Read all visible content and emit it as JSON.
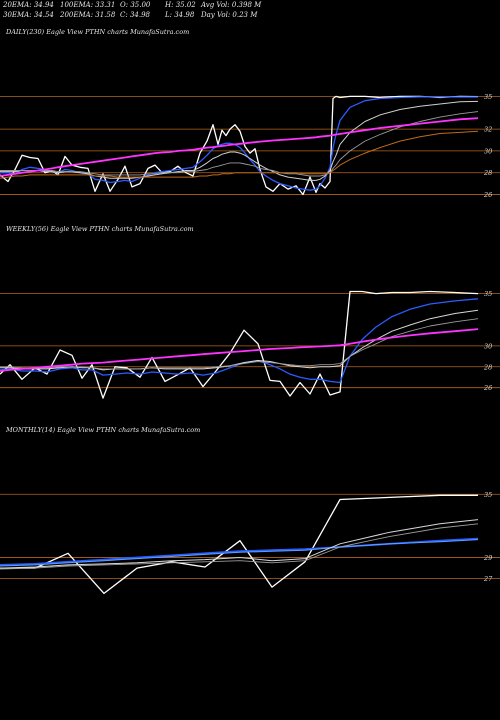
{
  "header": {
    "row1": [
      "20EMA: 34.94",
      "100EMA: 33.31",
      "O: 35.00",
      "H: 35.02",
      "Avg Vol: 0.398 M"
    ],
    "row2": [
      "30EMA: 34.54",
      "200EMA: 31.58",
      "C: 34.98",
      "L: 34.98",
      "Day Vol: 0.23 M"
    ]
  },
  "colors": {
    "background": "#000000",
    "grid": "#b5651d",
    "price": "#ffffff",
    "ema_blue": "#2a5cff",
    "ema_magenta": "#ff33ff",
    "ema_orange": "#c06a1a",
    "ema_light_blue": "#5aa0ff"
  },
  "chart_data": [
    {
      "type": "line",
      "title": "DAILY(230) Eagle  View  PTHN  charts MunafaSutra.com",
      "ylim": [
        25.5,
        36.5
      ],
      "y_ticks": [
        35,
        32,
        30,
        28,
        26
      ],
      "x": [
        0,
        8,
        15,
        22,
        30,
        38,
        45,
        52,
        58,
        65,
        72,
        80,
        88,
        95,
        103,
        110,
        118,
        125,
        132,
        140,
        148,
        155,
        162,
        170,
        178,
        186,
        193,
        200,
        207,
        213,
        218,
        222,
        226,
        230,
        235,
        240,
        245,
        250,
        255,
        260,
        266,
        273,
        280,
        288,
        296,
        303,
        310,
        316,
        320,
        325,
        330,
        333,
        336,
        340,
        350,
        365,
        380,
        400,
        420,
        440,
        460,
        478
      ],
      "series": [
        {
          "values": [
            27.8,
            27.2,
            28.3,
            29.6,
            29.4,
            29.3,
            28.0,
            28.2,
            27.8,
            29.5,
            28.7,
            28.5,
            28.4,
            26.3,
            27.9,
            26.3,
            27.4,
            28.6,
            26.7,
            27.0,
            28.4,
            28.7,
            28.0,
            28.1,
            28.6,
            28.0,
            27.7,
            29.8,
            30.9,
            32.4,
            30.6,
            31.9,
            31.4,
            32.0,
            32.4,
            31.8,
            30.4,
            29.8,
            30.2,
            28.3,
            26.7,
            26.3,
            27.0,
            26.5,
            26.8,
            26.0,
            27.6,
            26.2,
            27.0,
            26.6,
            27.2,
            34.8,
            35.0,
            34.9,
            35.0,
            35.0,
            34.9,
            35.0,
            35.0,
            34.9,
            35.0,
            34.98
          ],
          "color": "#ffffff",
          "width": 1.3
        },
        {
          "values": [
            28.0,
            28.0,
            27.9,
            28.3,
            28.5,
            28.4,
            28.3,
            28.1,
            28.0,
            28.3,
            28.2,
            28.0,
            27.9,
            27.4,
            27.3,
            27.1,
            27.2,
            27.3,
            27.2,
            27.5,
            27.8,
            28.0,
            28.1,
            28.2,
            28.3,
            28.4,
            28.5,
            29.0,
            29.6,
            30.2,
            30.5,
            30.6,
            30.7,
            30.7,
            30.6,
            30.3,
            29.8,
            29.2,
            28.7,
            28.1,
            27.7,
            27.3,
            27.0,
            26.8,
            26.6,
            26.5,
            26.4,
            26.5,
            26.8,
            27.5,
            28.5,
            30.3,
            31.5,
            32.8,
            34.0,
            34.6,
            34.8,
            34.9,
            34.95,
            34.95,
            34.94,
            34.94
          ],
          "color": "#2a5cff",
          "width": 1.3
        },
        {
          "values": [
            28.1,
            28.1,
            28.1,
            28.2,
            28.2,
            28.2,
            28.1,
            28.1,
            28.0,
            28.1,
            28.1,
            28.0,
            27.9,
            27.7,
            27.6,
            27.5,
            27.5,
            27.5,
            27.5,
            27.6,
            27.7,
            27.8,
            27.9,
            28.0,
            28.1,
            28.2,
            28.2,
            28.5,
            28.9,
            29.3,
            29.5,
            29.7,
            29.8,
            29.9,
            29.9,
            29.8,
            29.6,
            29.3,
            29.0,
            28.7,
            28.4,
            28.1,
            27.8,
            27.6,
            27.5,
            27.4,
            27.3,
            27.3,
            27.4,
            27.7,
            28.2,
            29.0,
            29.6,
            30.6,
            31.7,
            32.7,
            33.3,
            33.8,
            34.1,
            34.3,
            34.5,
            34.54
          ],
          "color": "#cfcfcf",
          "width": 1.0
        },
        {
          "values": [
            28.2,
            28.2,
            28.2,
            28.2,
            28.2,
            28.2,
            28.2,
            28.2,
            28.1,
            28.1,
            28.1,
            28.1,
            28.0,
            27.9,
            27.8,
            27.8,
            27.8,
            27.8,
            27.8,
            27.8,
            27.9,
            27.9,
            28.0,
            28.0,
            28.0,
            28.1,
            28.1,
            28.2,
            28.3,
            28.5,
            28.6,
            28.7,
            28.8,
            28.9,
            28.9,
            28.9,
            28.8,
            28.7,
            28.6,
            28.4,
            28.3,
            28.2,
            28.0,
            27.9,
            27.9,
            27.8,
            27.7,
            27.7,
            27.7,
            27.8,
            28.0,
            28.4,
            28.7,
            29.2,
            30.0,
            30.9,
            31.5,
            32.2,
            32.7,
            33.1,
            33.4,
            33.6
          ],
          "color": "#9a9a9a",
          "width": 0.9
        },
        {
          "values": [
            27.5,
            27.6,
            27.7,
            27.7,
            27.8,
            27.8,
            27.8,
            27.8,
            27.8,
            27.8,
            27.8,
            27.8,
            27.8,
            27.7,
            27.7,
            27.7,
            27.6,
            27.6,
            27.6,
            27.6,
            27.6,
            27.6,
            27.6,
            27.6,
            27.6,
            27.6,
            27.6,
            27.7,
            27.7,
            27.8,
            27.8,
            27.9,
            27.9,
            27.9,
            28.0,
            28.0,
            28.0,
            28.0,
            28.0,
            28.0,
            28.0,
            28.0,
            28.0,
            28.0,
            28.0,
            27.9,
            27.9,
            27.9,
            27.9,
            27.9,
            28.0,
            28.2,
            28.4,
            28.7,
            29.2,
            29.8,
            30.3,
            30.9,
            31.3,
            31.6,
            31.7,
            31.8
          ],
          "color": "#c06a1a",
          "width": 1.0
        },
        {
          "values": [
            27.7,
            27.8,
            27.9,
            28.0,
            28.1,
            28.2,
            28.3,
            28.4,
            28.5,
            28.6,
            28.7,
            28.8,
            28.9,
            29.0,
            29.1,
            29.2,
            29.3,
            29.4,
            29.5,
            29.6,
            29.7,
            29.8,
            29.85,
            29.9,
            30.0,
            30.05,
            30.1,
            30.2,
            30.3,
            30.35,
            30.4,
            30.45,
            30.5,
            30.55,
            30.6,
            30.65,
            30.7,
            30.75,
            30.8,
            30.85,
            30.9,
            30.95,
            31.0,
            31.05,
            31.1,
            31.15,
            31.2,
            31.25,
            31.3,
            31.35,
            31.4,
            31.45,
            31.5,
            31.55,
            31.7,
            31.9,
            32.1,
            32.3,
            32.5,
            32.7,
            32.9,
            33.0
          ],
          "color": "#ff33ff",
          "width": 1.8
        }
      ]
    },
    {
      "type": "line",
      "title": "WEEKLY(56) Eagle  View  PTHN  charts MunafaSutra.com",
      "ylim": [
        25.3,
        36.3
      ],
      "y_ticks": [
        35,
        30,
        28,
        26
      ],
      "x": [
        0,
        10,
        22,
        35,
        47,
        60,
        72,
        82,
        92,
        103,
        115,
        127,
        140,
        152,
        165,
        177,
        190,
        203,
        216,
        230,
        244,
        258,
        270,
        280,
        290,
        300,
        310,
        320,
        330,
        340,
        350,
        362,
        376,
        392,
        410,
        430,
        455,
        478
      ],
      "series": [
        {
          "values": [
            27.3,
            28.2,
            26.8,
            27.9,
            27.3,
            29.6,
            29.1,
            26.9,
            28.2,
            25.0,
            28.0,
            27.9,
            27.0,
            28.9,
            26.6,
            27.2,
            27.9,
            26.1,
            27.6,
            29.3,
            31.5,
            30.2,
            26.7,
            26.6,
            25.2,
            26.5,
            25.4,
            27.3,
            25.3,
            25.6,
            35.2,
            35.2,
            35.0,
            35.1,
            35.1,
            35.2,
            35.1,
            35.0
          ],
          "color": "#ffffff",
          "width": 1.3
        },
        {
          "values": [
            27.7,
            27.8,
            27.6,
            27.6,
            27.5,
            27.8,
            27.9,
            27.7,
            27.7,
            27.2,
            27.3,
            27.4,
            27.3,
            27.5,
            27.4,
            27.3,
            27.4,
            27.2,
            27.4,
            27.9,
            28.4,
            28.6,
            28.2,
            27.8,
            27.3,
            27.0,
            26.8,
            26.8,
            26.6,
            26.5,
            29.0,
            30.6,
            31.8,
            32.8,
            33.5,
            34.0,
            34.3,
            34.5
          ],
          "color": "#2a5cff",
          "width": 1.3
        },
        {
          "values": [
            27.9,
            27.9,
            27.8,
            27.8,
            27.8,
            27.9,
            28.0,
            27.9,
            27.9,
            27.7,
            27.8,
            27.8,
            27.8,
            27.9,
            27.8,
            27.8,
            27.8,
            27.8,
            27.9,
            28.1,
            28.4,
            28.6,
            28.5,
            28.3,
            28.1,
            28.0,
            27.9,
            28.0,
            28.0,
            28.1,
            29.0,
            29.8,
            30.6,
            31.4,
            32.0,
            32.6,
            33.1,
            33.4
          ],
          "color": "#d8d8d8",
          "width": 1.0
        },
        {
          "values": [
            28.0,
            28.0,
            27.9,
            27.9,
            27.9,
            28.0,
            28.0,
            28.0,
            27.9,
            27.8,
            27.8,
            27.8,
            27.8,
            27.9,
            27.9,
            27.9,
            27.9,
            27.9,
            28.0,
            28.1,
            28.3,
            28.5,
            28.4,
            28.3,
            28.2,
            28.1,
            28.1,
            28.2,
            28.2,
            28.3,
            29.0,
            29.6,
            30.2,
            30.9,
            31.4,
            31.9,
            32.3,
            32.6
          ],
          "color": "#9a9a9a",
          "width": 0.9
        },
        {
          "values": [
            27.6,
            27.7,
            27.8,
            27.9,
            28.0,
            28.1,
            28.2,
            28.3,
            28.35,
            28.4,
            28.5,
            28.6,
            28.7,
            28.8,
            28.9,
            29.0,
            29.1,
            29.2,
            29.3,
            29.4,
            29.5,
            29.6,
            29.7,
            29.75,
            29.8,
            29.85,
            29.9,
            29.95,
            30.0,
            30.05,
            30.2,
            30.4,
            30.6,
            30.8,
            31.0,
            31.2,
            31.4,
            31.6
          ],
          "color": "#ff33ff",
          "width": 1.8
        }
      ]
    },
    {
      "type": "line",
      "title": "MONTHLY(14) Eagle  View  PTHN  charts MunafaSutra.com",
      "ylim": [
        24.5,
        37.3
      ],
      "y_ticks": [
        35,
        29,
        27
      ],
      "x": [
        0,
        35,
        68,
        104,
        137,
        172,
        205,
        240,
        272,
        305,
        340,
        390,
        440,
        478
      ],
      "series": [
        {
          "values": [
            28.0,
            28.0,
            29.4,
            25.6,
            28.0,
            28.6,
            28.1,
            30.6,
            26.2,
            28.6,
            34.5,
            34.7,
            34.9,
            34.9
          ],
          "color": "#ffffff",
          "width": 1.3
        },
        {
          "values": [
            28.3,
            28.4,
            28.6,
            28.8,
            29.0,
            29.2,
            29.4,
            29.6,
            29.7,
            29.8,
            30.0,
            30.3,
            30.6,
            30.8
          ],
          "color": "#2a5cff",
          "width": 1.8
        },
        {
          "values": [
            28.2,
            28.3,
            28.5,
            28.7,
            28.9,
            29.1,
            29.3,
            29.5,
            29.6,
            29.7,
            30.0,
            30.3,
            30.5,
            30.7
          ],
          "color": "#5aa0ff",
          "width": 1.0
        },
        {
          "values": [
            28.0,
            28.1,
            28.3,
            28.4,
            28.5,
            28.7,
            28.8,
            29.0,
            28.7,
            28.9,
            30.3,
            31.4,
            32.2,
            32.6
          ],
          "color": "#d8d8d8",
          "width": 1.0
        },
        {
          "values": [
            27.9,
            28.0,
            28.2,
            28.3,
            28.4,
            28.5,
            28.6,
            28.7,
            28.5,
            28.7,
            30.0,
            31.0,
            31.8,
            32.2
          ],
          "color": "#9a9a9a",
          "width": 0.9
        }
      ]
    }
  ]
}
